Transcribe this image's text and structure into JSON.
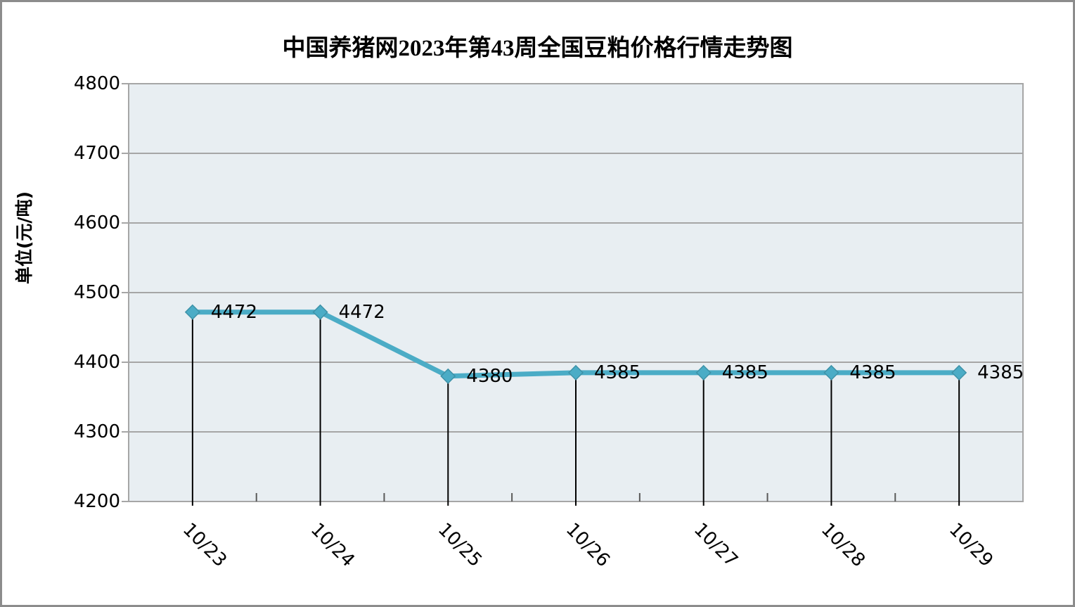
{
  "chart_data": {
    "type": "line",
    "title": "中国养猪网2023年第43周全国豆粕价格行情走势图",
    "ylabel": "单位(元/吨)",
    "xlabel": "",
    "categories": [
      "10/23",
      "10/24",
      "10/25",
      "10/26",
      "10/27",
      "10/28",
      "10/29"
    ],
    "values": [
      4472,
      4472,
      4380,
      4385,
      4385,
      4385,
      4385
    ],
    "data_labels": [
      "4472",
      "4472",
      "4380",
      "4385",
      "4385",
      "4385",
      "4385"
    ],
    "ylim": [
      4200,
      4800
    ],
    "yticks": [
      4800,
      4700,
      4600,
      4500,
      4400,
      4300,
      4200
    ],
    "ytick_interval": 100,
    "grid": true,
    "legend": "none",
    "marker": "diamond",
    "drop_lines": true,
    "colors": {
      "line": "#4bacc6",
      "marker_edge": "#3d92a8",
      "plot_bg": "#e8eef2",
      "gridline": "#a6a6a6",
      "plot_border": "#a6a6a6",
      "drop_line": "#000000",
      "boundary_tick": "#595959",
      "outer_border": "#8c8c8c",
      "text": "#000000"
    }
  }
}
